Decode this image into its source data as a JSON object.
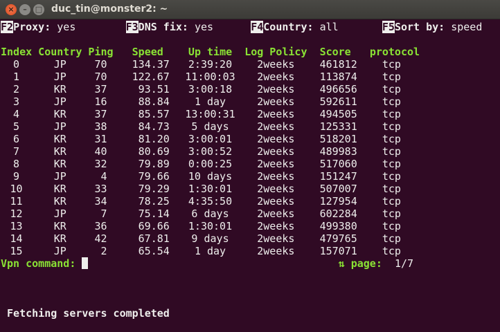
{
  "window": {
    "title": "duc_tin@monster2: ~"
  },
  "options": [
    {
      "key": "F2",
      "label": "Proxy:",
      "value": "yes"
    },
    {
      "key": "F3",
      "label": "DNS fix:",
      "value": "yes"
    },
    {
      "key": "F4",
      "label": "Country:",
      "value": "all"
    },
    {
      "key": "F5",
      "label": "Sort by:",
      "value": "speed"
    }
  ],
  "table": {
    "headers": [
      "Index",
      "Country",
      "Ping",
      "Speed",
      "Up time",
      "Log Policy",
      "Score",
      "protocol"
    ],
    "rows": [
      [
        "0",
        "JP",
        "70",
        "134.37",
        "2:39:20",
        "2weeks",
        "461812",
        "tcp"
      ],
      [
        "1",
        "JP",
        "70",
        "122.67",
        "11:00:03",
        "2weeks",
        "113874",
        "tcp"
      ],
      [
        "2",
        "KR",
        "37",
        "93.51",
        "3:00:18",
        "2weeks",
        "496656",
        "tcp"
      ],
      [
        "3",
        "JP",
        "16",
        "88.84",
        "1 day",
        "2weeks",
        "592611",
        "tcp"
      ],
      [
        "4",
        "KR",
        "37",
        "85.57",
        "13:00:31",
        "2weeks",
        "494505",
        "tcp"
      ],
      [
        "5",
        "JP",
        "38",
        "84.73",
        "5 days",
        "2weeks",
        "125331",
        "tcp"
      ],
      [
        "6",
        "KR",
        "31",
        "81.20",
        "3:00:01",
        "2weeks",
        "518201",
        "tcp"
      ],
      [
        "7",
        "KR",
        "40",
        "80.69",
        "3:00:52",
        "2weeks",
        "489983",
        "tcp"
      ],
      [
        "8",
        "KR",
        "32",
        "79.89",
        "0:00:25",
        "2weeks",
        "517060",
        "tcp"
      ],
      [
        "9",
        "JP",
        "4",
        "79.66",
        "10 days",
        "2weeks",
        "151247",
        "tcp"
      ],
      [
        "10",
        "KR",
        "33",
        "79.29",
        "1:30:01",
        "2weeks",
        "507007",
        "tcp"
      ],
      [
        "11",
        "KR",
        "34",
        "78.25",
        "4:35:50",
        "2weeks",
        "127954",
        "tcp"
      ],
      [
        "12",
        "JP",
        "7",
        "75.14",
        "6 days",
        "2weeks",
        "602284",
        "tcp"
      ],
      [
        "13",
        "KR",
        "36",
        "69.66",
        "1:30:01",
        "2weeks",
        "499380",
        "tcp"
      ],
      [
        "14",
        "KR",
        "42",
        "67.81",
        "9 days",
        "2weeks",
        "479765",
        "tcp"
      ],
      [
        "15",
        "JP",
        "2",
        "65.54",
        "1 day",
        "2weeks",
        "157071",
        "tcp"
      ]
    ]
  },
  "prompt": {
    "label": "Vpn command:",
    "value": ""
  },
  "pager": {
    "arrows": "⇅",
    "label": "page:",
    "value": "1/7"
  },
  "status": "Fetching servers completed",
  "colors": {
    "background": "#300a24",
    "accent": "#8ae234",
    "text": "#eeeeec"
  }
}
